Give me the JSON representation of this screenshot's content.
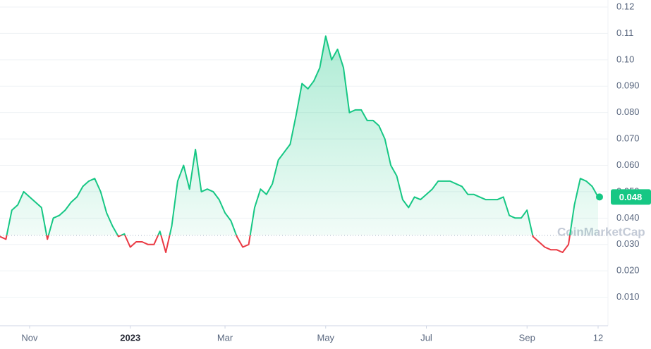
{
  "chart_data": {
    "type": "line",
    "watermark": "CoinMarketCap",
    "values": [
      0.033,
      0.032,
      0.043,
      0.045,
      0.05,
      0.048,
      0.046,
      0.044,
      0.032,
      0.04,
      0.041,
      0.043,
      0.046,
      0.048,
      0.052,
      0.054,
      0.055,
      0.05,
      0.042,
      0.037,
      0.033,
      0.034,
      0.029,
      0.031,
      0.031,
      0.03,
      0.03,
      0.035,
      0.027,
      0.037,
      0.054,
      0.06,
      0.051,
      0.066,
      0.05,
      0.051,
      0.05,
      0.047,
      0.042,
      0.039,
      0.033,
      0.029,
      0.03,
      0.044,
      0.051,
      0.049,
      0.053,
      0.062,
      0.065,
      0.068,
      0.079,
      0.091,
      0.089,
      0.092,
      0.097,
      0.109,
      0.1,
      0.104,
      0.097,
      0.08,
      0.081,
      0.081,
      0.077,
      0.077,
      0.075,
      0.07,
      0.06,
      0.056,
      0.047,
      0.044,
      0.048,
      0.047,
      0.049,
      0.051,
      0.054,
      0.054,
      0.054,
      0.053,
      0.052,
      0.049,
      0.049,
      0.048,
      0.047,
      0.047,
      0.047,
      0.048,
      0.041,
      0.04,
      0.04,
      0.043,
      0.033,
      0.031,
      0.029,
      0.028,
      0.028,
      0.027,
      0.03,
      0.045,
      0.055,
      0.054,
      0.052,
      0.048
    ],
    "baseline": 0.0335,
    "current_value": 0.048,
    "up_color": "#16c784",
    "down_color": "#ea3943",
    "xlim": [
      0,
      101
    ],
    "xticks": [
      {
        "value": 5,
        "label": "Nov"
      },
      {
        "value": 22,
        "label": "2023"
      },
      {
        "value": 38,
        "label": "Mar"
      },
      {
        "value": 55,
        "label": "May"
      },
      {
        "value": 72,
        "label": "Jul"
      },
      {
        "value": 89,
        "label": "Sep"
      },
      {
        "value": 101,
        "label": "12"
      }
    ],
    "ylim": [
      0,
      0.12
    ],
    "yticks": [
      {
        "value": 0.01,
        "label": "0.010"
      },
      {
        "value": 0.02,
        "label": "0.020"
      },
      {
        "value": 0.03,
        "label": "0.030"
      },
      {
        "value": 0.04,
        "label": "0.040"
      },
      {
        "value": 0.05,
        "label": "0.050"
      },
      {
        "value": 0.06,
        "label": "0.060"
      },
      {
        "value": 0.07,
        "label": "0.070"
      },
      {
        "value": 0.08,
        "label": "0.080"
      },
      {
        "value": 0.09,
        "label": "0.090"
      },
      {
        "value": 0.1,
        "label": "0.10"
      },
      0.11,
      0.12
    ],
    "grid": true
  }
}
